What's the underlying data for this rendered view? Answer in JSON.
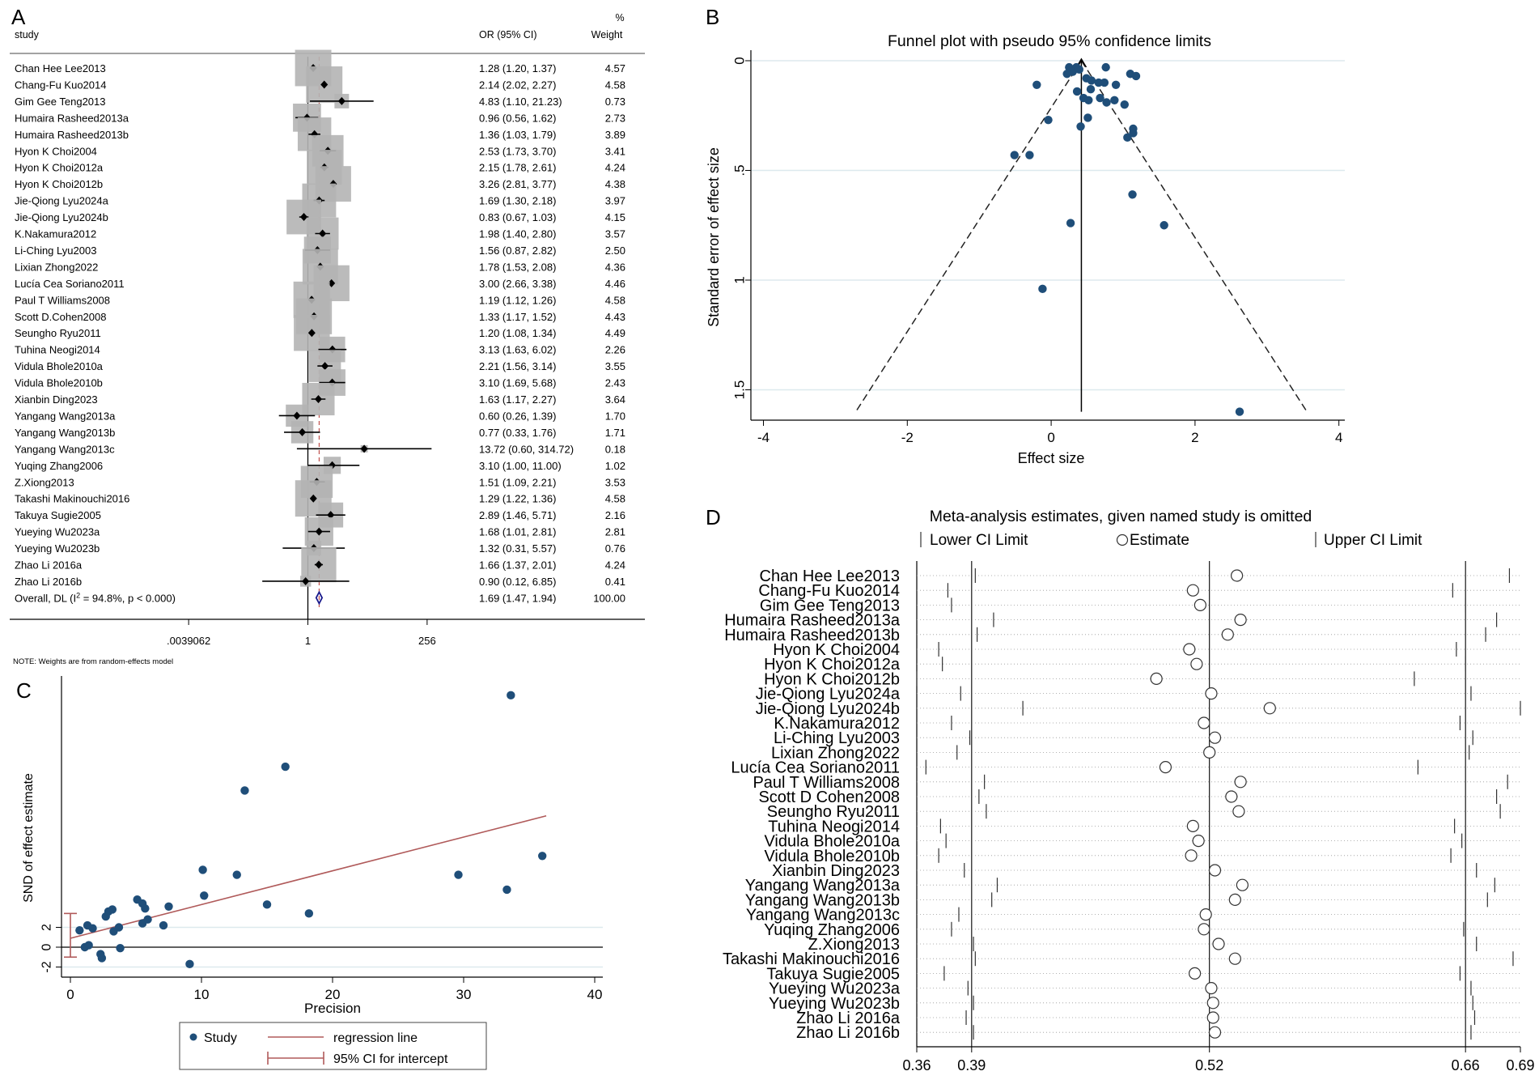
{
  "panels": {
    "a": "A",
    "b": "B",
    "c": "C",
    "d": "D"
  },
  "colors": {
    "marker": "#1f4e79",
    "ci_band": "#b4b4b4",
    "refline": "#c0504d",
    "diamond": "#1a1a8c",
    "regression": "#b05a5a",
    "grid": "#dde9ee"
  },
  "chart_data": [
    {
      "panel": "A",
      "type": "forest",
      "header": {
        "study": "study",
        "or_ci": "OR (95% CI)",
        "weight_pct": "%",
        "weight": "Weight"
      },
      "x_scale": "log2",
      "ticks": [
        {
          "value": 0.0039062,
          "label": ".0039062"
        },
        {
          "value": 1,
          "label": "1"
        },
        {
          "value": 256,
          "label": "256"
        }
      ],
      "studies": [
        {
          "name": "Chan Hee Lee2013",
          "or": 1.28,
          "lo": 1.2,
          "hi": 1.37,
          "ci_text": "1.28 (1.20, 1.37)",
          "weight": "4.57"
        },
        {
          "name": "Chang-Fu Kuo2014",
          "or": 2.14,
          "lo": 2.02,
          "hi": 2.27,
          "ci_text": "2.14 (2.02, 2.27)",
          "weight": "4.58"
        },
        {
          "name": "Gim Gee Teng2013",
          "or": 4.83,
          "lo": 1.1,
          "hi": 21.23,
          "ci_text": "4.83 (1.10, 21.23)",
          "weight": "0.73"
        },
        {
          "name": "Humaira Rasheed2013a",
          "or": 0.96,
          "lo": 0.56,
          "hi": 1.62,
          "ci_text": "0.96 (0.56, 1.62)",
          "weight": "2.73"
        },
        {
          "name": "Humaira Rasheed2013b",
          "or": 1.36,
          "lo": 1.03,
          "hi": 1.79,
          "ci_text": "1.36 (1.03, 1.79)",
          "weight": "3.89"
        },
        {
          "name": "Hyon K Choi2004",
          "or": 2.53,
          "lo": 1.73,
          "hi": 3.7,
          "ci_text": "2.53 (1.73, 3.70)",
          "weight": "3.41"
        },
        {
          "name": "Hyon K Choi2012a",
          "or": 2.15,
          "lo": 1.78,
          "hi": 2.61,
          "ci_text": "2.15 (1.78, 2.61)",
          "weight": "4.24"
        },
        {
          "name": "Hyon K Choi2012b",
          "or": 3.26,
          "lo": 2.81,
          "hi": 3.77,
          "ci_text": "3.26 (2.81, 3.77)",
          "weight": "4.38"
        },
        {
          "name": "Jie-Qiong Lyu2024a",
          "or": 1.69,
          "lo": 1.3,
          "hi": 2.18,
          "ci_text": "1.69 (1.30, 2.18)",
          "weight": "3.97"
        },
        {
          "name": "Jie-Qiong Lyu2024b",
          "or": 0.83,
          "lo": 0.67,
          "hi": 1.03,
          "ci_text": "0.83 (0.67, 1.03)",
          "weight": "4.15"
        },
        {
          "name": "K.Nakamura2012",
          "or": 1.98,
          "lo": 1.4,
          "hi": 2.8,
          "ci_text": "1.98 (1.40, 2.80)",
          "weight": "3.57"
        },
        {
          "name": "Li-Ching Lyu2003",
          "or": 1.56,
          "lo": 0.87,
          "hi": 2.82,
          "ci_text": "1.56 (0.87, 2.82)",
          "weight": "2.50"
        },
        {
          "name": "Lixian Zhong2022",
          "or": 1.78,
          "lo": 1.53,
          "hi": 2.08,
          "ci_text": "1.78 (1.53, 2.08)",
          "weight": "4.36"
        },
        {
          "name": "Lucía Cea Soriano2011",
          "or": 3.0,
          "lo": 2.66,
          "hi": 3.38,
          "ci_text": "3.00 (2.66, 3.38)",
          "weight": "4.46"
        },
        {
          "name": "Paul T Williams2008",
          "or": 1.19,
          "lo": 1.12,
          "hi": 1.26,
          "ci_text": "1.19 (1.12, 1.26)",
          "weight": "4.58"
        },
        {
          "name": "Scott D.Cohen2008",
          "or": 1.33,
          "lo": 1.17,
          "hi": 1.52,
          "ci_text": "1.33 (1.17, 1.52)",
          "weight": "4.43"
        },
        {
          "name": "Seungho Ryu2011",
          "or": 1.2,
          "lo": 1.08,
          "hi": 1.34,
          "ci_text": "1.20 (1.08, 1.34)",
          "weight": "4.49"
        },
        {
          "name": "Tuhina Neogi2014",
          "or": 3.13,
          "lo": 1.63,
          "hi": 6.02,
          "ci_text": "3.13 (1.63, 6.02)",
          "weight": "2.26"
        },
        {
          "name": "Vidula Bhole2010a",
          "or": 2.21,
          "lo": 1.56,
          "hi": 3.14,
          "ci_text": "2.21 (1.56, 3.14)",
          "weight": "3.55"
        },
        {
          "name": "Vidula Bhole2010b",
          "or": 3.1,
          "lo": 1.69,
          "hi": 5.68,
          "ci_text": "3.10 (1.69, 5.68)",
          "weight": "2.43"
        },
        {
          "name": "Xianbin Ding2023",
          "or": 1.63,
          "lo": 1.17,
          "hi": 2.27,
          "ci_text": "1.63 (1.17, 2.27)",
          "weight": "3.64"
        },
        {
          "name": "Yangang Wang2013a",
          "or": 0.6,
          "lo": 0.26,
          "hi": 1.39,
          "ci_text": "0.60 (0.26, 1.39)",
          "weight": "1.70"
        },
        {
          "name": "Yangang Wang2013b",
          "or": 0.77,
          "lo": 0.33,
          "hi": 1.76,
          "ci_text": "0.77 (0.33, 1.76)",
          "weight": "1.71"
        },
        {
          "name": "Yangang Wang2013c",
          "or": 13.72,
          "lo": 0.6,
          "hi": 314.72,
          "ci_text": "13.72 (0.60, 314.72)",
          "weight": "0.18"
        },
        {
          "name": "Yuqing Zhang2006",
          "or": 3.1,
          "lo": 1.0,
          "hi": 11.0,
          "ci_text": "3.10 (1.00, 11.00)",
          "weight": "1.02"
        },
        {
          "name": "Z.Xiong2013",
          "or": 1.51,
          "lo": 1.09,
          "hi": 2.21,
          "ci_text": "1.51 (1.09, 2.21)",
          "weight": "3.53"
        },
        {
          "name": "Takashi Makinouchi2016",
          "or": 1.29,
          "lo": 1.22,
          "hi": 1.36,
          "ci_text": "1.29 (1.22, 1.36)",
          "weight": "4.58"
        },
        {
          "name": "Takuya Sugie2005",
          "or": 2.89,
          "lo": 1.46,
          "hi": 5.71,
          "ci_text": "2.89 (1.46, 5.71)",
          "weight": "2.16"
        },
        {
          "name": "Yueying Wu2023a",
          "or": 1.68,
          "lo": 1.01,
          "hi": 2.81,
          "ci_text": "1.68 (1.01, 2.81)",
          "weight": "2.81"
        },
        {
          "name": "Yueying Wu2023b",
          "or": 1.32,
          "lo": 0.31,
          "hi": 5.57,
          "ci_text": "1.32 (0.31, 5.57)",
          "weight": "0.76"
        },
        {
          "name": "Zhao Li 2016a",
          "or": 1.66,
          "lo": 1.37,
          "hi": 2.01,
          "ci_text": "1.66 (1.37, 2.01)",
          "weight": "4.24"
        },
        {
          "name": "Zhao Li 2016b",
          "or": 0.9,
          "lo": 0.12,
          "hi": 6.85,
          "ci_text": "0.90 (0.12, 6.85)",
          "weight": "0.41"
        }
      ],
      "overall": {
        "label_prefix": "Overall, DL (I",
        "label_sup": "2",
        "label_suffix": " = 94.8%, p < 0.000)",
        "or": 1.69,
        "lo": 1.47,
        "hi": 1.94,
        "ci_text": "1.69 (1.47, 1.94)",
        "weight": "100.00"
      },
      "note": "NOTE: Weights are from random-effects model"
    },
    {
      "panel": "B",
      "type": "scatter",
      "title": "Funnel plot with pseudo 95% confidence limits",
      "xlabel": "Effect size",
      "ylabel": "Standard error of effect size",
      "xlim": [
        -4.3,
        4.2
      ],
      "ylim": [
        0,
        1.6
      ],
      "y_reversed": true,
      "xticks": [
        -4,
        -2,
        0,
        2,
        4
      ],
      "xtick_labels": [
        "-4",
        "-2",
        "0",
        "2",
        "4"
      ],
      "yticks": [
        0,
        0.5,
        1,
        1.5
      ],
      "ytick_labels": [
        "0",
        ".5",
        "1",
        "1.5"
      ],
      "pooled_effect": 0.42,
      "points": [
        [
          0.25,
          0.03
        ],
        [
          0.29,
          0.04
        ],
        [
          0.35,
          0.03
        ],
        [
          0.3,
          0.05
        ],
        [
          0.22,
          0.06
        ],
        [
          0.39,
          0.04
        ],
        [
          0.76,
          0.03
        ],
        [
          1.1,
          0.06
        ],
        [
          1.18,
          0.07
        ],
        [
          -0.2,
          0.11
        ],
        [
          0.49,
          0.08
        ],
        [
          0.56,
          0.09
        ],
        [
          0.66,
          0.1
        ],
        [
          0.74,
          0.1
        ],
        [
          0.9,
          0.11
        ],
        [
          0.36,
          0.14
        ],
        [
          0.55,
          0.13
        ],
        [
          0.45,
          0.17
        ],
        [
          0.68,
          0.17
        ],
        [
          0.52,
          0.18
        ],
        [
          0.88,
          0.18
        ],
        [
          1.02,
          0.2
        ],
        [
          0.77,
          0.19
        ],
        [
          -0.04,
          0.27
        ],
        [
          0.51,
          0.26
        ],
        [
          0.41,
          0.3
        ],
        [
          1.14,
          0.31
        ],
        [
          1.14,
          0.33
        ],
        [
          1.06,
          0.35
        ],
        [
          -0.51,
          0.43
        ],
        [
          -0.3,
          0.43
        ],
        [
          1.13,
          0.61
        ],
        [
          0.27,
          0.74
        ],
        [
          1.57,
          0.75
        ],
        [
          -0.12,
          1.04
        ],
        [
          2.62,
          1.6
        ]
      ]
    },
    {
      "panel": "C",
      "type": "scatter",
      "title": "",
      "xlabel": "Precision",
      "ylabel": "SND of effect estimate",
      "xlim": [
        -0.5,
        41
      ],
      "ylim": [
        -3,
        32
      ],
      "xticks": [
        0,
        10,
        20,
        30,
        40
      ],
      "xtick_labels": [
        "0",
        "10",
        "20",
        "30",
        "40"
      ],
      "yticks": [
        -2,
        0,
        2
      ],
      "ytick_labels": [
        "-2",
        "0",
        "2"
      ],
      "regression": {
        "intercept": 0.9,
        "slope": 0.34,
        "x_range": [
          0,
          36.3
        ]
      },
      "intercept_ci": [
        -1.0,
        3.4
      ],
      "points": [
        [
          0.7,
          1.7
        ],
        [
          1.3,
          2.2
        ],
        [
          1.7,
          1.9
        ],
        [
          1.1,
          0.0
        ],
        [
          1.4,
          0.2
        ],
        [
          2.3,
          -0.7
        ],
        [
          2.4,
          -1.1
        ],
        [
          2.7,
          3.1
        ],
        [
          2.9,
          3.6
        ],
        [
          3.2,
          3.8
        ],
        [
          3.3,
          1.6
        ],
        [
          3.7,
          2.0
        ],
        [
          3.8,
          -0.1
        ],
        [
          5.1,
          4.8
        ],
        [
          5.5,
          4.4
        ],
        [
          5.7,
          3.9
        ],
        [
          5.5,
          2.4
        ],
        [
          5.9,
          2.8
        ],
        [
          7.1,
          2.2
        ],
        [
          7.5,
          4.1
        ],
        [
          9.1,
          -1.7
        ],
        [
          10.1,
          7.8
        ],
        [
          10.2,
          5.2
        ],
        [
          12.7,
          7.3
        ],
        [
          13.3,
          15.8
        ],
        [
          15.0,
          4.3
        ],
        [
          16.4,
          18.2
        ],
        [
          18.2,
          3.4
        ],
        [
          29.6,
          7.3
        ],
        [
          33.3,
          5.8
        ],
        [
          33.6,
          25.4
        ],
        [
          36.0,
          9.2
        ]
      ],
      "legend": {
        "study": "Study",
        "regression_line": "regression line",
        "ci": "95% CI for intercept"
      }
    },
    {
      "panel": "D",
      "type": "sensitivity",
      "title": "Meta-analysis estimates, given named study is omitted",
      "legend": {
        "lower": "Lower CI Limit",
        "estimate": "Estimate",
        "upper": "Upper CI Limit"
      },
      "xlim": [
        0.36,
        0.69
      ],
      "xticks": [
        0.36,
        0.39,
        0.52,
        0.66,
        0.69
      ],
      "xtick_labels": [
        "0.36",
        "0.39",
        "0.52",
        "0.66",
        "0.69"
      ],
      "reference_lines": [
        0.39,
        0.52,
        0.66
      ],
      "rows": [
        {
          "name": "Chan Hee Lee2013",
          "lo": 0.392,
          "est": 0.535,
          "hi": 0.684
        },
        {
          "name": "Chang-Fu Kuo2014",
          "lo": 0.377,
          "est": 0.511,
          "hi": 0.653
        },
        {
          "name": "Gim Gee Teng2013",
          "lo": 0.379,
          "est": 0.515,
          "hi": 0.66
        },
        {
          "name": "Humaira Rasheed2013a",
          "lo": 0.402,
          "est": 0.537,
          "hi": 0.677
        },
        {
          "name": "Humaira Rasheed2013b",
          "lo": 0.393,
          "est": 0.53,
          "hi": 0.671
        },
        {
          "name": "Hyon K Choi2004",
          "lo": 0.372,
          "est": 0.509,
          "hi": 0.655
        },
        {
          "name": "Hyon K Choi2012a",
          "lo": 0.374,
          "est": 0.513,
          "hi": 0.66
        },
        {
          "name": "Hyon K Choi2012b",
          "lo": 0.36,
          "est": 0.491,
          "hi": 0.632
        },
        {
          "name": "Jie-Qiong Lyu2024a",
          "lo": 0.384,
          "est": 0.521,
          "hi": 0.663
        },
        {
          "name": "Jie-Qiong Lyu2024b",
          "lo": 0.418,
          "est": 0.553,
          "hi": 0.69
        },
        {
          "name": "K.Nakamura2012",
          "lo": 0.379,
          "est": 0.517,
          "hi": 0.657
        },
        {
          "name": "Li-Ching Lyu2003",
          "lo": 0.389,
          "est": 0.523,
          "hi": 0.664
        },
        {
          "name": "Lixian Zhong2022",
          "lo": 0.382,
          "est": 0.52,
          "hi": 0.662
        },
        {
          "name": "Lucía Cea Soriano2011",
          "lo": 0.365,
          "est": 0.496,
          "hi": 0.634
        },
        {
          "name": "Paul T Williams2008",
          "lo": 0.397,
          "est": 0.537,
          "hi": 0.683
        },
        {
          "name": "Scott D Cohen2008",
          "lo": 0.394,
          "est": 0.532,
          "hi": 0.677
        },
        {
          "name": "Seungho Ryu2011",
          "lo": 0.398,
          "est": 0.536,
          "hi": 0.679
        },
        {
          "name": "Tuhina Neogi2014",
          "lo": 0.373,
          "est": 0.511,
          "hi": 0.654
        },
        {
          "name": "Vidula Bhole2010a",
          "lo": 0.376,
          "est": 0.514,
          "hi": 0.658
        },
        {
          "name": "Vidula Bhole2010b",
          "lo": 0.372,
          "est": 0.51,
          "hi": 0.652
        },
        {
          "name": "Xianbin Ding2023",
          "lo": 0.386,
          "est": 0.523,
          "hi": 0.666
        },
        {
          "name": "Yangang Wang2013a",
          "lo": 0.404,
          "est": 0.538,
          "hi": 0.676
        },
        {
          "name": "Yangang Wang2013b",
          "lo": 0.401,
          "est": 0.534,
          "hi": 0.672
        },
        {
          "name": "Yangang Wang2013c",
          "lo": 0.383,
          "est": 0.518,
          "hi": 0.66
        },
        {
          "name": "Yuqing Zhang2006",
          "lo": 0.379,
          "est": 0.517,
          "hi": 0.659
        },
        {
          "name": "Z.Xiong2013",
          "lo": 0.391,
          "est": 0.525,
          "hi": 0.666
        },
        {
          "name": "Takashi Makinouchi2016",
          "lo": 0.392,
          "est": 0.534,
          "hi": 0.686
        },
        {
          "name": "Takuya Sugie2005",
          "lo": 0.375,
          "est": 0.512,
          "hi": 0.657
        },
        {
          "name": "Yueying Wu2023a",
          "lo": 0.388,
          "est": 0.521,
          "hi": 0.663
        },
        {
          "name": "Yueying Wu2023b",
          "lo": 0.391,
          "est": 0.522,
          "hi": 0.664
        },
        {
          "name": "Zhao Li 2016a",
          "lo": 0.387,
          "est": 0.522,
          "hi": 0.665
        },
        {
          "name": "Zhao Li 2016b",
          "lo": 0.391,
          "est": 0.523,
          "hi": 0.663
        }
      ]
    }
  ]
}
